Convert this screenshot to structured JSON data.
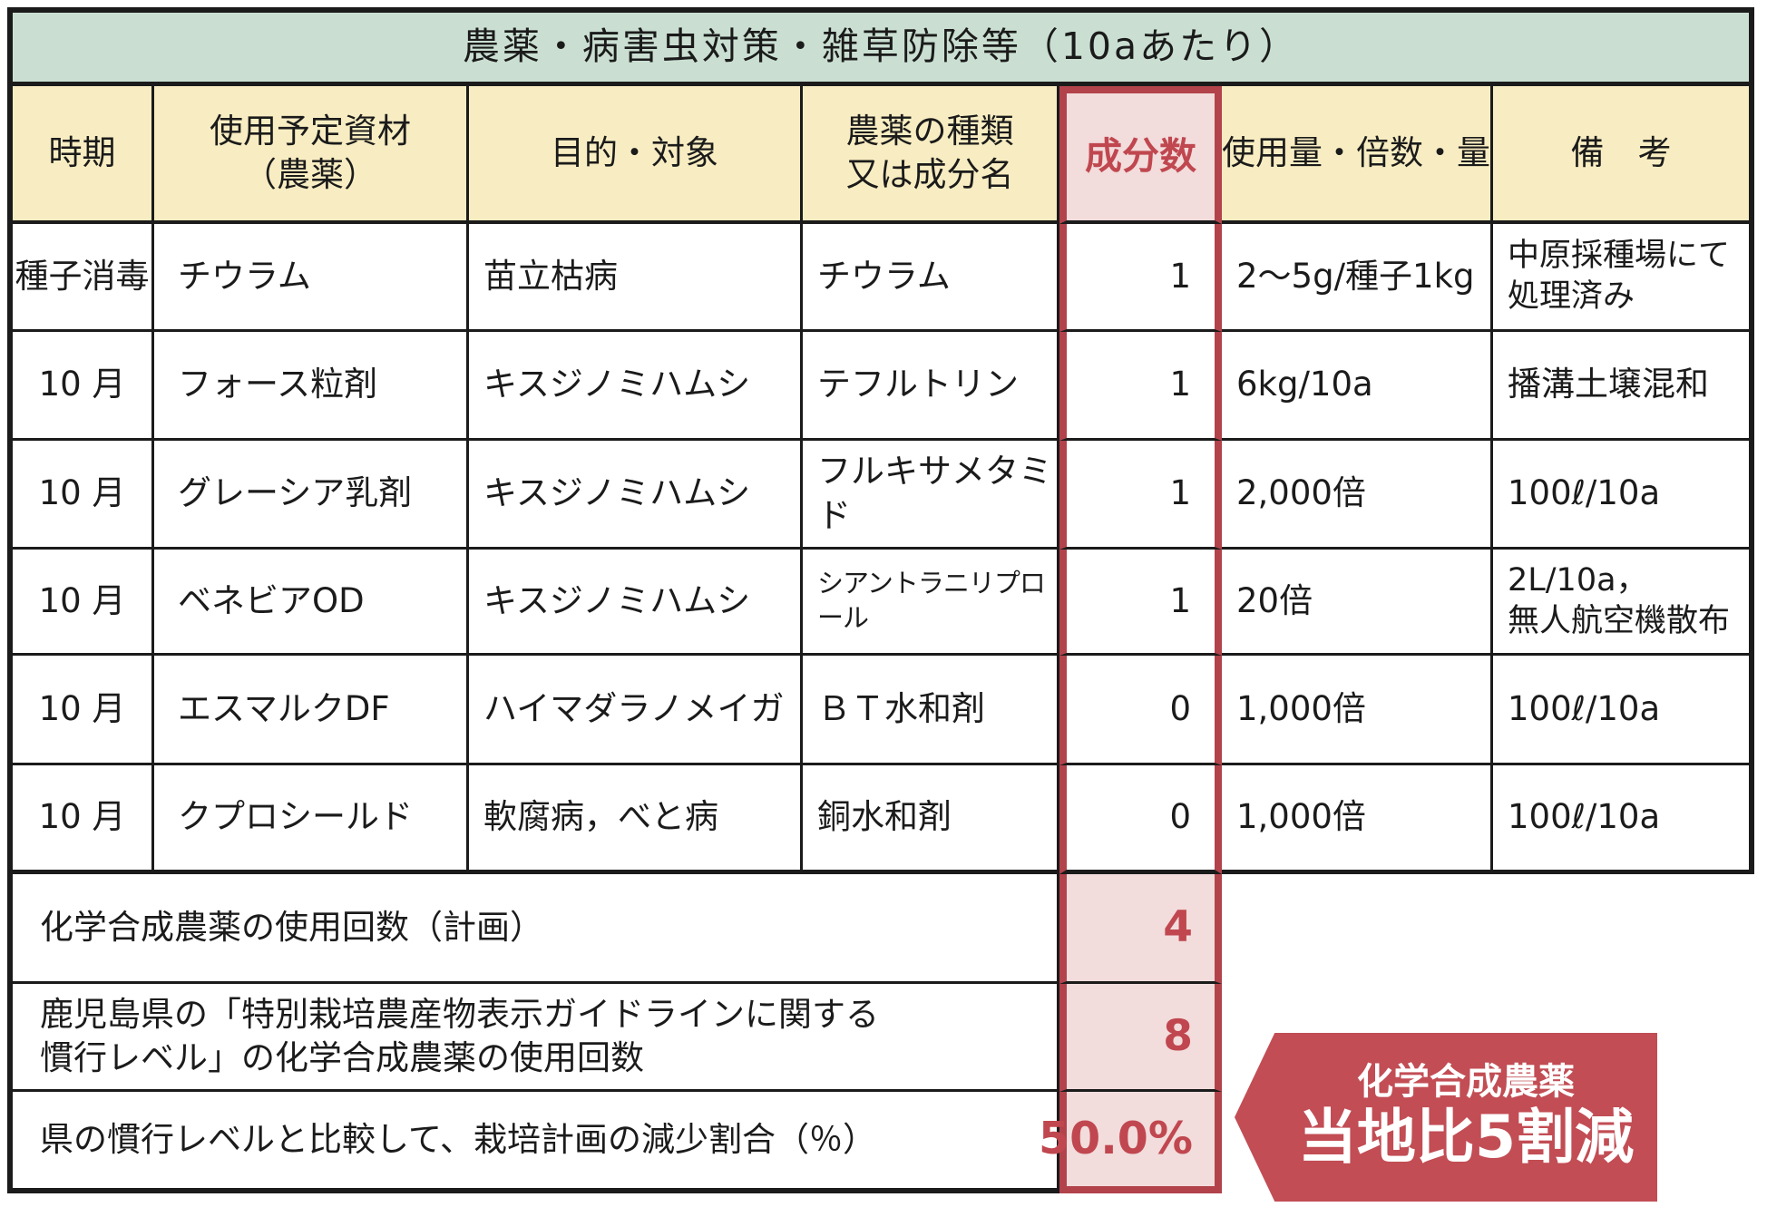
{
  "title": "農薬・病害虫対策・雑草防除等（10aあたり）",
  "table": {
    "headers": [
      "時期",
      "使用予定資材\n（農薬）",
      "目的・対象",
      "農薬の種類\n又は成分名",
      "成分数",
      "使用量・倍数・量",
      "備　考"
    ],
    "rows": [
      [
        "種子消毒",
        "チウラム",
        "苗立枯病",
        "チウラム",
        "1",
        "2〜5g/種子1kg",
        "中原採種場にて\n処理済み"
      ],
      [
        "10 月",
        "フォース粒剤",
        "キスジノミハムシ",
        "テフルトリン",
        "1",
        "6kg/10a",
        "播溝土壌混和"
      ],
      [
        "10 月",
        "グレーシア乳剤",
        "キスジノミハムシ",
        "フルキサメタミド",
        "1",
        "2,000倍",
        "100ℓ/10a"
      ],
      [
        "10 月",
        "ベネビアOD",
        "キスジノミハムシ",
        "シアントラニリプロール",
        "1",
        "20倍",
        "2L/10a，\n無人航空機散布"
      ],
      [
        "10 月",
        "エスマルクDF",
        "ハイマダラノメイガ",
        "ＢＴ水和剤",
        "0",
        "1,000倍",
        "100ℓ/10a"
      ],
      [
        "10 月",
        "クプロシールド",
        "軟腐病，べと病",
        "銅水和剤",
        "0",
        "1,000倍",
        "100ℓ/10a"
      ]
    ]
  },
  "summary": {
    "rows": [
      {
        "label": "化学合成農薬の使用回数（計画）",
        "value": "4"
      },
      {
        "label": "鹿児島県の「特別栽培農産物表示ガイドラインに関する\n慣行レベル」の化学合成農薬の使用回数",
        "value": "8"
      },
      {
        "label": "県の慣行レベルと比較して、栽培計画の減少割合（％）",
        "value": "50.0%"
      }
    ]
  },
  "banner": {
    "line1": "化学合成農薬",
    "line2": "当地比5割減"
  },
  "colors": {
    "title_bg": "#cadfd2",
    "header_bg": "#f8edc2",
    "highlight_pink": "#f2dcdc",
    "accent_red_border": "#b2434b",
    "accent_red_text": "#c0474f",
    "banner_red": "#c24d54",
    "grid_black": "#1b1b1b"
  }
}
